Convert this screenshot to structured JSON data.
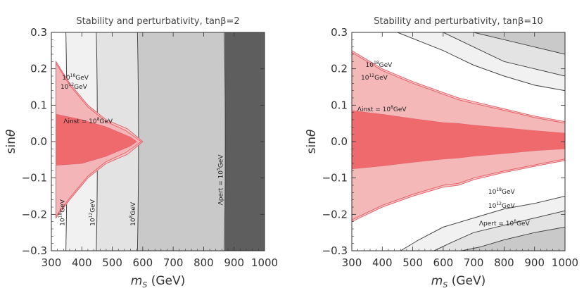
{
  "chart_data": [
    {
      "type": "contour",
      "title": "Stability and perturbativity, tanβ=2",
      "xlabel": "m_S (GeV)",
      "ylabel": "sinθ",
      "xlim": [
        300,
        1000
      ],
      "ylim": [
        -0.3,
        0.3
      ],
      "xticks": [
        300,
        400,
        500,
        600,
        700,
        800,
        900,
        1000
      ],
      "yticks": [
        -0.3,
        -0.2,
        -0.1,
        0.0,
        0.1,
        0.2,
        0.3
      ],
      "xtick_labels": [
        "300",
        "400",
        "500",
        "600",
        "700",
        "800",
        "900",
        "1000"
      ],
      "ytick_labels": [
        "−0.3",
        "−0.2",
        "−0.1",
        "0.0",
        "0.1",
        "0.2",
        "0.3"
      ],
      "perturbativity_bounds_mS": [
        {
          "label": "10^18GeV",
          "mS": 350
        },
        {
          "label": "10^12GeV",
          "mS": 450
        },
        {
          "label": "10^8GeV",
          "mS": 585
        },
        {
          "label": "Λpert = 10^5GeV",
          "mS": 870
        }
      ],
      "stability_regions": [
        {
          "name": "10^18GeV",
          "points": [
            [
              315,
              0.22
            ],
            [
              360,
              0.16
            ],
            [
              420,
              0.1
            ],
            [
              480,
              0.06
            ],
            [
              550,
              0.035
            ],
            [
              600,
              0.0
            ],
            [
              550,
              -0.035
            ],
            [
              480,
              -0.06
            ],
            [
              420,
              -0.1
            ],
            [
              360,
              -0.16
            ],
            [
              315,
              -0.21
            ]
          ]
        },
        {
          "name": "10^12GeV",
          "points": [
            [
              315,
              0.215
            ],
            [
              360,
              0.155
            ],
            [
              420,
              0.095
            ],
            [
              480,
              0.055
            ],
            [
              545,
              0.03
            ],
            [
              595,
              0.0
            ],
            [
              545,
              -0.03
            ],
            [
              480,
              -0.055
            ],
            [
              420,
              -0.095
            ],
            [
              360,
              -0.155
            ],
            [
              315,
              -0.205
            ]
          ]
        },
        {
          "name": "Λinst = 10^8GeV",
          "points": [
            [
              315,
              0.075
            ],
            [
              400,
              0.06
            ],
            [
              480,
              0.04
            ],
            [
              560,
              0.012
            ],
            [
              580,
              0.0
            ],
            [
              560,
              -0.012
            ],
            [
              480,
              -0.04
            ],
            [
              400,
              -0.06
            ],
            [
              315,
              -0.065
            ]
          ]
        }
      ],
      "labels": [
        {
          "text": "10",
          "sup": "18",
          "tail": "GeV",
          "at": [
            335,
            0.17
          ]
        },
        {
          "text": "10",
          "sup": "12",
          "tail": "GeV",
          "at": [
            330,
            0.145
          ]
        },
        {
          "text": "Λinst = 10",
          "sup": "8",
          "tail": "GeV",
          "at": [
            340,
            0.05
          ]
        },
        {
          "text": "10",
          "sup": "18",
          "tail": "GeV",
          "at": [
            343,
            -0.232
          ],
          "rot": -90
        },
        {
          "text": "10",
          "sup": "12",
          "tail": "GeV",
          "at": [
            442,
            -0.232
          ],
          "rot": -90
        },
        {
          "text": "10",
          "sup": "8",
          "tail": "GeV",
          "at": [
            575,
            -0.232
          ],
          "rot": -90
        },
        {
          "text": "Λpert = 10",
          "sup": "5",
          "tail": "GeV",
          "at": [
            863,
            -0.175
          ],
          "rot": -90
        }
      ]
    },
    {
      "type": "contour",
      "title": "Stability and perturbativity, tanβ=10",
      "xlabel": "m_S (GeV)",
      "ylabel": "sinθ",
      "xlim": [
        300,
        1000
      ],
      "ylim": [
        -0.3,
        0.3
      ],
      "xticks": [
        300,
        400,
        500,
        600,
        700,
        800,
        900,
        1000
      ],
      "yticks": [
        -0.3,
        -0.2,
        -0.1,
        0.0,
        0.1,
        0.2,
        0.3
      ],
      "xtick_labels": [
        "300",
        "400",
        "500",
        "600",
        "700",
        "800",
        "900",
        "1000"
      ],
      "ytick_labels": [
        "−0.3",
        "−0.2",
        "−0.1",
        "0.0",
        "0.1",
        "0.2",
        "0.3"
      ],
      "perturbativity_bands": [
        {
          "name": "10^18GeV",
          "upper": [
            [
              300,
              0.3
            ],
            [
              450,
              0.3
            ],
            [
              600,
              0.25
            ],
            [
              700,
              0.21
            ],
            [
              800,
              0.18
            ],
            [
              900,
              0.155
            ],
            [
              1000,
              0.14
            ]
          ],
          "lower": [
            [
              460,
              -0.3
            ],
            [
              520,
              -0.27
            ],
            [
              600,
              -0.235
            ],
            [
              700,
              -0.21
            ],
            [
              800,
              -0.185
            ],
            [
              900,
              -0.17
            ],
            [
              1000,
              -0.15
            ]
          ]
        },
        {
          "name": "10^12GeV",
          "upper": [
            [
              300,
              0.3
            ],
            [
              600,
              0.3
            ],
            [
              700,
              0.26
            ],
            [
              800,
              0.22
            ],
            [
              900,
              0.2
            ],
            [
              1000,
              0.18
            ]
          ],
          "lower": [
            [
              570,
              -0.3
            ],
            [
              620,
              -0.28
            ],
            [
              700,
              -0.25
            ],
            [
              800,
              -0.23
            ],
            [
              900,
              -0.21
            ],
            [
              1000,
              -0.19
            ]
          ]
        },
        {
          "name": "Λpert = 10^8GeV",
          "upper": [
            [
              300,
              0.3
            ],
            [
              700,
              0.3
            ],
            [
              800,
              0.28
            ],
            [
              900,
              0.26
            ],
            [
              1000,
              0.24
            ]
          ],
          "lower": [
            [
              660,
              -0.3
            ],
            [
              720,
              -0.29
            ],
            [
              800,
              -0.27
            ],
            [
              900,
              -0.25
            ],
            [
              1000,
              -0.235
            ]
          ]
        }
      ],
      "stability_regions": [
        {
          "name": "10^18GeV",
          "upper": [
            [
              300,
              0.25
            ],
            [
              400,
              0.2
            ],
            [
              500,
              0.165
            ],
            [
              600,
              0.135
            ],
            [
              650,
              0.12
            ],
            [
              700,
              0.11
            ],
            [
              800,
              0.09
            ],
            [
              900,
              0.07
            ],
            [
              1000,
              0.055
            ]
          ],
          "lower": [
            [
              300,
              -0.22
            ],
            [
              400,
              -0.18
            ],
            [
              500,
              -0.15
            ],
            [
              600,
              -0.125
            ],
            [
              650,
              -0.12
            ],
            [
              700,
              -0.105
            ],
            [
              800,
              -0.085
            ],
            [
              900,
              -0.068
            ],
            [
              1000,
              -0.052
            ]
          ]
        },
        {
          "name": "10^12GeV",
          "upper": [
            [
              300,
              0.245
            ],
            [
              400,
              0.195
            ],
            [
              500,
              0.16
            ],
            [
              600,
              0.13
            ],
            [
              650,
              0.115
            ],
            [
              700,
              0.105
            ],
            [
              800,
              0.086
            ],
            [
              900,
              0.066
            ],
            [
              1000,
              0.051
            ]
          ],
          "lower": [
            [
              300,
              -0.215
            ],
            [
              400,
              -0.175
            ],
            [
              500,
              -0.145
            ],
            [
              600,
              -0.12
            ],
            [
              650,
              -0.115
            ],
            [
              700,
              -0.1
            ],
            [
              800,
              -0.081
            ],
            [
              900,
              -0.064
            ],
            [
              1000,
              -0.048
            ]
          ]
        },
        {
          "name": "Λinst = 10^8GeV",
          "upper": [
            [
              300,
              0.085
            ],
            [
              400,
              0.075
            ],
            [
              500,
              0.063
            ],
            [
              600,
              0.052
            ],
            [
              650,
              0.05
            ],
            [
              700,
              0.045
            ],
            [
              800,
              0.038
            ],
            [
              900,
              0.03
            ],
            [
              1000,
              0.023
            ]
          ],
          "lower": [
            [
              300,
              -0.075
            ],
            [
              400,
              -0.067
            ],
            [
              500,
              -0.057
            ],
            [
              600,
              -0.048
            ],
            [
              650,
              -0.045
            ],
            [
              700,
              -0.04
            ],
            [
              800,
              -0.033
            ],
            [
              900,
              -0.025
            ],
            [
              1000,
              -0.02
            ]
          ]
        }
      ],
      "labels": [
        {
          "text": "10",
          "sup": "18",
          "tail": "GeV",
          "at": [
            345,
            0.205
          ]
        },
        {
          "text": "10",
          "sup": "12",
          "tail": "GeV",
          "at": [
            330,
            0.17
          ]
        },
        {
          "text": "Λinst = 10",
          "sup": "8",
          "tail": "GeV",
          "at": [
            318,
            0.083
          ]
        },
        {
          "text": "10",
          "sup": "18",
          "tail": "GeV",
          "at": [
            748,
            -0.143
          ]
        },
        {
          "text": "10",
          "sup": "12",
          "tail": "GeV",
          "at": [
            748,
            -0.182
          ]
        },
        {
          "text": "Λpert = 10",
          "sup": "8",
          "tail": "GeV",
          "at": [
            718,
            -0.23
          ]
        }
      ]
    }
  ],
  "colors": {
    "white": "#ffffff",
    "light_gray": "#f1f1f1",
    "mid_gray": "#e3e3e3",
    "gray": "#c9c9c9",
    "dark_gray": "#5e5e5e",
    "pink_light": "#f7c9ca",
    "pink": "#f2a9ab",
    "red": "#ef6a6d",
    "red_line": "#e3636a",
    "line": "#444444"
  }
}
